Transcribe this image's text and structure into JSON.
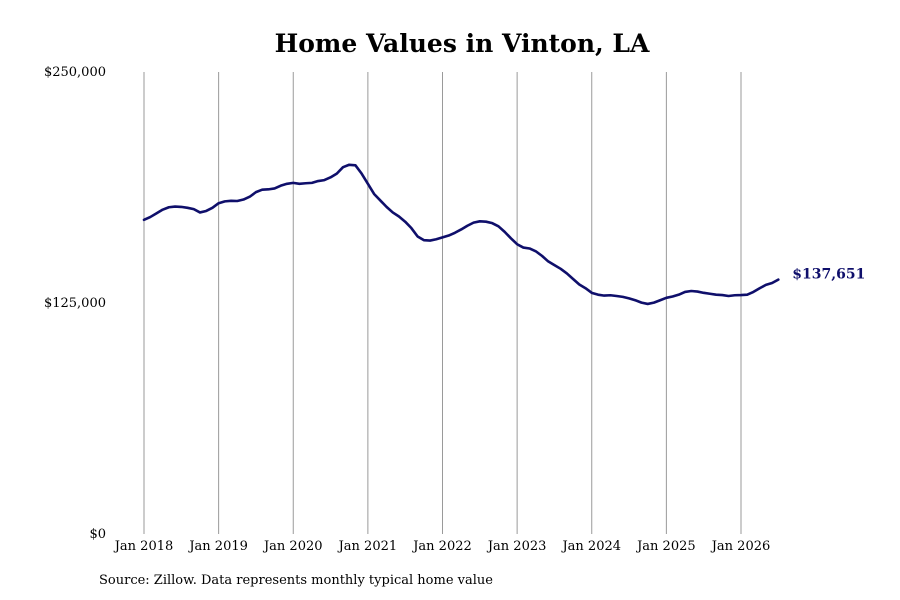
{
  "colors": {
    "line": "#0f0f6b",
    "end_label": "#0f0f6b",
    "grid": "#9a9a9a"
  },
  "source_note": "Source: Zillow. Data represents monthly typical home value",
  "chart_data": {
    "type": "line",
    "title": "Home Values in Vinton, LA",
    "xlabel": "",
    "ylabel": "",
    "ylim": [
      0,
      250000
    ],
    "y_ticks": [
      {
        "value": 0,
        "label": "$0"
      },
      {
        "value": 125000,
        "label": "$125,000"
      },
      {
        "value": 250000,
        "label": "$250,000"
      }
    ],
    "x_ticks": [
      "Jan 2018",
      "Jan 2019",
      "Jan 2020",
      "Jan 2021",
      "Jan 2022",
      "Jan 2023",
      "Jan 2024",
      "Jan 2025",
      "Jan 2026"
    ],
    "x_range": [
      "2018-01",
      "2026-07"
    ],
    "grid": "vertical at x ticks",
    "end_label": "$137,651",
    "series": [
      {
        "values": [
          {
            "x": "2018-01",
            "y": 170000
          },
          {
            "x": "2018-02",
            "y": 171500
          },
          {
            "x": "2018-03",
            "y": 173500
          },
          {
            "x": "2018-04",
            "y": 175500
          },
          {
            "x": "2018-05",
            "y": 176800
          },
          {
            "x": "2018-06",
            "y": 177200
          },
          {
            "x": "2018-07",
            "y": 177000
          },
          {
            "x": "2018-08",
            "y": 176500
          },
          {
            "x": "2018-09",
            "y": 175800
          },
          {
            "x": "2018-10",
            "y": 174000
          },
          {
            "x": "2018-11",
            "y": 174800
          },
          {
            "x": "2018-12",
            "y": 176500
          },
          {
            "x": "2019-01",
            "y": 179000
          },
          {
            "x": "2019-02",
            "y": 180000
          },
          {
            "x": "2019-03",
            "y": 180300
          },
          {
            "x": "2019-04",
            "y": 180200
          },
          {
            "x": "2019-05",
            "y": 181000
          },
          {
            "x": "2019-06",
            "y": 182500
          },
          {
            "x": "2019-07",
            "y": 185000
          },
          {
            "x": "2019-08",
            "y": 186300
          },
          {
            "x": "2019-09",
            "y": 186500
          },
          {
            "x": "2019-10",
            "y": 187000
          },
          {
            "x": "2019-11",
            "y": 188500
          },
          {
            "x": "2019-12",
            "y": 189500
          },
          {
            "x": "2020-01",
            "y": 190000
          },
          {
            "x": "2020-02",
            "y": 189500
          },
          {
            "x": "2020-03",
            "y": 189800
          },
          {
            "x": "2020-04",
            "y": 190000
          },
          {
            "x": "2020-05",
            "y": 191000
          },
          {
            "x": "2020-06",
            "y": 191500
          },
          {
            "x": "2020-07",
            "y": 193000
          },
          {
            "x": "2020-08",
            "y": 195000
          },
          {
            "x": "2020-09",
            "y": 198500
          },
          {
            "x": "2020-10",
            "y": 199800
          },
          {
            "x": "2020-11",
            "y": 199500
          },
          {
            "x": "2020-12",
            "y": 195000
          },
          {
            "x": "2021-01",
            "y": 189500
          },
          {
            "x": "2021-02",
            "y": 184000
          },
          {
            "x": "2021-03",
            "y": 180500
          },
          {
            "x": "2021-04",
            "y": 177000
          },
          {
            "x": "2021-05",
            "y": 174000
          },
          {
            "x": "2021-06",
            "y": 171800
          },
          {
            "x": "2021-07",
            "y": 169000
          },
          {
            "x": "2021-08",
            "y": 165500
          },
          {
            "x": "2021-09",
            "y": 161000
          },
          {
            "x": "2021-10",
            "y": 159000
          },
          {
            "x": "2021-11",
            "y": 158800
          },
          {
            "x": "2021-12",
            "y": 159500
          },
          {
            "x": "2022-01",
            "y": 160500
          },
          {
            "x": "2022-02",
            "y": 161500
          },
          {
            "x": "2022-03",
            "y": 163000
          },
          {
            "x": "2022-04",
            "y": 164800
          },
          {
            "x": "2022-05",
            "y": 166800
          },
          {
            "x": "2022-06",
            "y": 168500
          },
          {
            "x": "2022-07",
            "y": 169200
          },
          {
            "x": "2022-08",
            "y": 169000
          },
          {
            "x": "2022-09",
            "y": 168200
          },
          {
            "x": "2022-10",
            "y": 166500
          },
          {
            "x": "2022-11",
            "y": 163500
          },
          {
            "x": "2022-12",
            "y": 160000
          },
          {
            "x": "2023-01",
            "y": 156800
          },
          {
            "x": "2023-02",
            "y": 155000
          },
          {
            "x": "2023-03",
            "y": 154500
          },
          {
            "x": "2023-04",
            "y": 153000
          },
          {
            "x": "2023-05",
            "y": 150500
          },
          {
            "x": "2023-06",
            "y": 147500
          },
          {
            "x": "2023-07",
            "y": 145500
          },
          {
            "x": "2023-08",
            "y": 143500
          },
          {
            "x": "2023-09",
            "y": 141000
          },
          {
            "x": "2023-10",
            "y": 138000
          },
          {
            "x": "2023-11",
            "y": 135000
          },
          {
            "x": "2023-12",
            "y": 133000
          },
          {
            "x": "2024-01",
            "y": 130500
          },
          {
            "x": "2024-02",
            "y": 129500
          },
          {
            "x": "2024-03",
            "y": 129000
          },
          {
            "x": "2024-04",
            "y": 129200
          },
          {
            "x": "2024-05",
            "y": 128800
          },
          {
            "x": "2024-06",
            "y": 128300
          },
          {
            "x": "2024-07",
            "y": 127500
          },
          {
            "x": "2024-08",
            "y": 126500
          },
          {
            "x": "2024-09",
            "y": 125200
          },
          {
            "x": "2024-10",
            "y": 124500
          },
          {
            "x": "2024-11",
            "y": 125200
          },
          {
            "x": "2024-12",
            "y": 126500
          },
          {
            "x": "2025-01",
            "y": 127800
          },
          {
            "x": "2025-02",
            "y": 128500
          },
          {
            "x": "2025-03",
            "y": 129500
          },
          {
            "x": "2025-04",
            "y": 131000
          },
          {
            "x": "2025-05",
            "y": 131500
          },
          {
            "x": "2025-06",
            "y": 131200
          },
          {
            "x": "2025-07",
            "y": 130500
          },
          {
            "x": "2025-08",
            "y": 130000
          },
          {
            "x": "2025-09",
            "y": 129500
          },
          {
            "x": "2025-10",
            "y": 129300
          },
          {
            "x": "2025-11",
            "y": 128800
          },
          {
            "x": "2025-12",
            "y": 129200
          },
          {
            "x": "2026-01",
            "y": 129300
          },
          {
            "x": "2026-02",
            "y": 129500
          },
          {
            "x": "2026-03",
            "y": 131000
          },
          {
            "x": "2026-04",
            "y": 133000
          },
          {
            "x": "2026-05",
            "y": 134800
          },
          {
            "x": "2026-06",
            "y": 135800
          },
          {
            "x": "2026-07",
            "y": 137651
          }
        ]
      }
    ]
  }
}
